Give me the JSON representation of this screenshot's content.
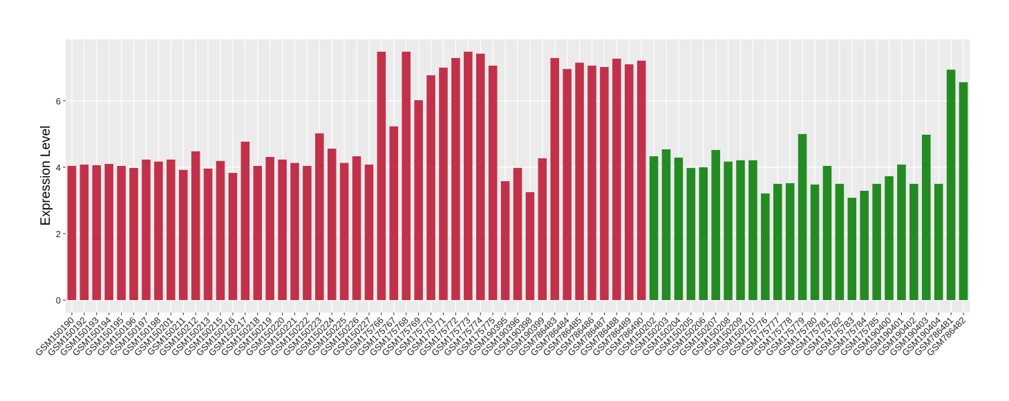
{
  "chart_data": {
    "type": "bar",
    "y_label": "Expression Level",
    "categories": [
      "GSM150190",
      "GSM150192",
      "GSM150193",
      "GSM150194",
      "GSM150195",
      "GSM150196",
      "GSM150197",
      "GSM150198",
      "GSM150201",
      "GSM150211",
      "GSM150212",
      "GSM150213",
      "GSM150215",
      "GSM150216",
      "GSM150217",
      "GSM150218",
      "GSM150219",
      "GSM150220",
      "GSM150221",
      "GSM150222",
      "GSM150223",
      "GSM150224",
      "GSM150225",
      "GSM150226",
      "GSM150227",
      "GSM175766",
      "GSM175767",
      "GSM175768",
      "GSM175769",
      "GSM175770",
      "GSM175771",
      "GSM175772",
      "GSM175773",
      "GSM175774",
      "GSM175775",
      "GSM190395",
      "GSM190396",
      "GSM190398",
      "GSM190399",
      "GSM786483",
      "GSM786484",
      "GSM786485",
      "GSM786486",
      "GSM786487",
      "GSM786488",
      "GSM786489",
      "GSM786490",
      "GSM150202",
      "GSM150203",
      "GSM150204",
      "GSM150205",
      "GSM150206",
      "GSM150207",
      "GSM150208",
      "GSM150209",
      "GSM150210",
      "GSM175776",
      "GSM175777",
      "GSM175778",
      "GSM175779",
      "GSM175780",
      "GSM175781",
      "GSM175782",
      "GSM175783",
      "GSM175784",
      "GSM175785",
      "GSM190400",
      "GSM190401",
      "GSM190402",
      "GSM190403",
      "GSM190404",
      "GSM786481",
      "GSM786482"
    ],
    "values": [
      4.04,
      4.08,
      4.06,
      4.1,
      4.04,
      3.98,
      4.23,
      4.17,
      4.23,
      3.92,
      4.48,
      3.96,
      4.19,
      3.83,
      4.77,
      4.04,
      4.31,
      4.23,
      4.13,
      4.04,
      5.02,
      4.56,
      4.13,
      4.33,
      4.08,
      7.48,
      5.23,
      7.48,
      6.02,
      6.77,
      7.0,
      7.29,
      7.48,
      7.42,
      7.06,
      3.58,
      3.98,
      3.25,
      4.27,
      7.29,
      6.96,
      7.15,
      7.06,
      7.02,
      7.27,
      7.1,
      7.21,
      4.33,
      4.54,
      4.29,
      3.98,
      4.0,
      4.52,
      4.17,
      4.21,
      4.21,
      3.21,
      3.5,
      3.52,
      5.0,
      3.48,
      4.04,
      3.5,
      3.08,
      3.29,
      3.5,
      3.73,
      4.08,
      3.5,
      4.98,
      3.5,
      6.94,
      6.56
    ],
    "colors": [
      "#c1314a",
      "#c1314a",
      "#c1314a",
      "#c1314a",
      "#c1314a",
      "#c1314a",
      "#c1314a",
      "#c1314a",
      "#c1314a",
      "#c1314a",
      "#c1314a",
      "#c1314a",
      "#c1314a",
      "#c1314a",
      "#c1314a",
      "#c1314a",
      "#c1314a",
      "#c1314a",
      "#c1314a",
      "#c1314a",
      "#c1314a",
      "#c1314a",
      "#c1314a",
      "#c1314a",
      "#c1314a",
      "#c1314a",
      "#c1314a",
      "#c1314a",
      "#c1314a",
      "#c1314a",
      "#c1314a",
      "#c1314a",
      "#c1314a",
      "#c1314a",
      "#c1314a",
      "#c1314a",
      "#c1314a",
      "#c1314a",
      "#c1314a",
      "#c1314a",
      "#c1314a",
      "#c1314a",
      "#c1314a",
      "#c1314a",
      "#c1314a",
      "#c1314a",
      "#c1314a",
      "#238b22",
      "#238b22",
      "#238b22",
      "#238b22",
      "#238b22",
      "#238b22",
      "#238b22",
      "#238b22",
      "#238b22",
      "#238b22",
      "#238b22",
      "#238b22",
      "#238b22",
      "#238b22",
      "#238b22",
      "#238b22",
      "#238b22",
      "#238b22",
      "#238b22",
      "#238b22",
      "#238b22",
      "#238b22",
      "#238b22",
      "#238b22",
      "#238b22",
      "#238b22"
    ],
    "ylim": [
      -0.375,
      7.85
    ],
    "yticks": [
      0,
      2,
      4,
      6
    ],
    "grid": true
  }
}
